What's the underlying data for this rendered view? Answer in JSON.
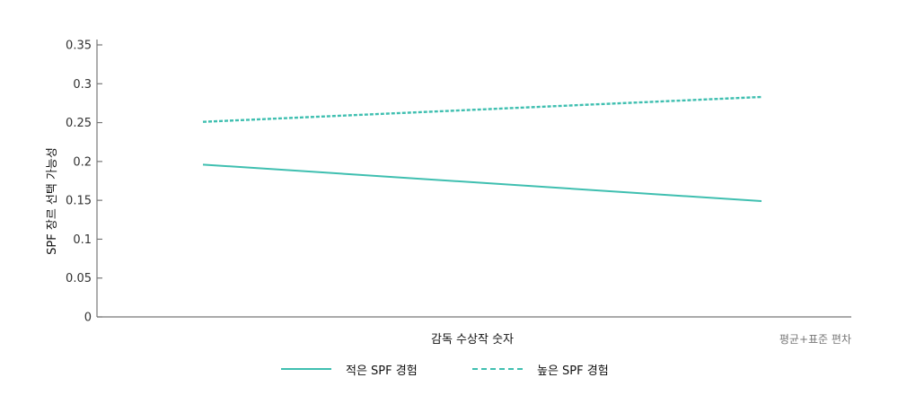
{
  "colors": {
    "series": "#3fbfb0",
    "axis": "#777777"
  },
  "chart_data": {
    "type": "line",
    "x": [
      "",
      ""
    ],
    "xlabel": "감독 수상작 숫자",
    "x_right_label": "평균+표준 편차",
    "ylabel": "SPF 장르 선택 가능성",
    "ylim": [
      0,
      0.35
    ],
    "yticks": [
      "0",
      "0.05",
      "0.1",
      "0.15",
      "0.2",
      "0.25",
      "0.3",
      "0.35"
    ],
    "grid": false,
    "legend_position": "bottom",
    "series": [
      {
        "name": "적은 SPF 경험",
        "style": "solid",
        "values": [
          0.196,
          0.149
        ]
      },
      {
        "name": "높은 SPF 경험",
        "style": "dashed",
        "values": [
          0.251,
          0.283
        ]
      }
    ]
  }
}
